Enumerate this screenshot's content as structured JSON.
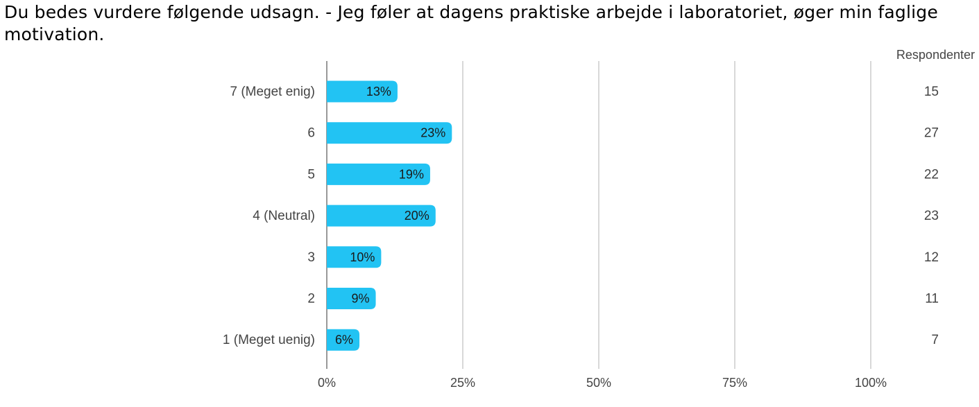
{
  "title": "Du bedes vurdere følgende udsagn. - Jeg føler at dagens praktiske arbejde i laboratoriet, øger min faglige motivation.",
  "chart_data": {
    "type": "bar",
    "orientation": "horizontal",
    "categories": [
      "7 (Meget enig)",
      "6",
      "5",
      "4 (Neutral)",
      "3",
      "2",
      "1 (Meget uenig)"
    ],
    "values": [
      13,
      23,
      19,
      20,
      10,
      9,
      6
    ],
    "value_labels": [
      "13%",
      "23%",
      "19%",
      "20%",
      "10%",
      "9%",
      "6%"
    ],
    "respondents_header": "Respondenter",
    "respondents": [
      "15",
      "27",
      "22",
      "23",
      "12",
      "11",
      "7"
    ],
    "xlim": [
      0,
      100
    ],
    "ticks": [
      0,
      25,
      50,
      75,
      100
    ],
    "tick_labels": [
      "0%",
      "25%",
      "50%",
      "75%",
      "100%"
    ],
    "grid": true,
    "bar_color": "#22c3f3",
    "xlabel": "",
    "ylabel": ""
  }
}
